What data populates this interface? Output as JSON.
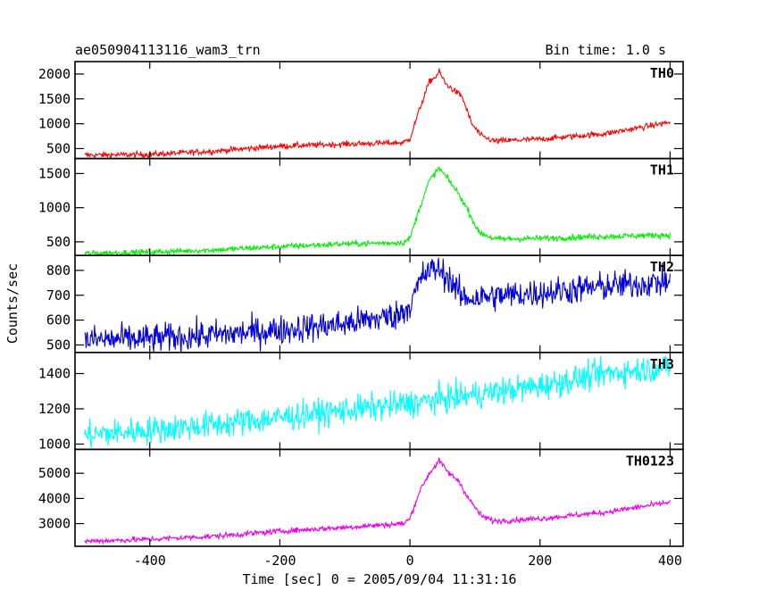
{
  "header": {
    "title": "ae050904113116_wam3_trn",
    "bin_time": "Bin time: 1.0 s"
  },
  "chart_data": {
    "type": "line",
    "xlabel": "Time [sec] 0 = 2005/09/04 11:31:16",
    "ylabel": "Counts/sec",
    "xlim": [
      -515,
      420
    ],
    "x_ticks": [
      -400,
      -200,
      0,
      200,
      400
    ],
    "x_range": [
      -500,
      400
    ],
    "panels": [
      {
        "name": "TH0",
        "color": "#ff0000",
        "ylim": [
          300,
          2250
        ],
        "y_ticks": [
          500,
          1000,
          1500,
          2000
        ],
        "noise": 30,
        "points": [
          [
            -500,
            370
          ],
          [
            -400,
            380
          ],
          [
            -300,
            450
          ],
          [
            -200,
            550
          ],
          [
            -100,
            590
          ],
          [
            -10,
            620
          ],
          [
            0,
            700
          ],
          [
            15,
            1300
          ],
          [
            30,
            1850
          ],
          [
            40,
            1950
          ],
          [
            45,
            2050
          ],
          [
            55,
            1800
          ],
          [
            70,
            1650
          ],
          [
            80,
            1550
          ],
          [
            95,
            1000
          ],
          [
            110,
            750
          ],
          [
            130,
            650
          ],
          [
            200,
            690
          ],
          [
            300,
            800
          ],
          [
            400,
            1030
          ]
        ]
      },
      {
        "name": "TH1",
        "color": "#00ee00",
        "ylim": [
          300,
          1720
        ],
        "y_ticks": [
          500,
          1000,
          1500
        ],
        "noise": 22,
        "points": [
          [
            -500,
            330
          ],
          [
            -400,
            350
          ],
          [
            -300,
            380
          ],
          [
            -200,
            430
          ],
          [
            -100,
            470
          ],
          [
            -10,
            490
          ],
          [
            0,
            550
          ],
          [
            15,
            1000
          ],
          [
            30,
            1400
          ],
          [
            45,
            1580
          ],
          [
            60,
            1400
          ],
          [
            75,
            1200
          ],
          [
            90,
            950
          ],
          [
            105,
            650
          ],
          [
            130,
            540
          ],
          [
            200,
            550
          ],
          [
            300,
            580
          ],
          [
            400,
            600
          ]
        ]
      },
      {
        "name": "TH2",
        "color": "#0000dd",
        "ylim": [
          470,
          860
        ],
        "y_ticks": [
          500,
          600,
          700,
          800
        ],
        "noise": 30,
        "points": [
          [
            -500,
            520
          ],
          [
            -400,
            525
          ],
          [
            -300,
            540
          ],
          [
            -200,
            560
          ],
          [
            -100,
            585
          ],
          [
            -20,
            620
          ],
          [
            0,
            660
          ],
          [
            20,
            780
          ],
          [
            40,
            810
          ],
          [
            60,
            770
          ],
          [
            80,
            690
          ],
          [
            100,
            690
          ],
          [
            150,
            700
          ],
          [
            200,
            710
          ],
          [
            300,
            735
          ],
          [
            400,
            755
          ]
        ]
      },
      {
        "name": "TH3",
        "color": "#00ffff",
        "ylim": [
          970,
          1520
        ],
        "y_ticks": [
          1000,
          1200,
          1400
        ],
        "noise": 40,
        "points": [
          [
            -500,
            1050
          ],
          [
            -400,
            1080
          ],
          [
            -300,
            1110
          ],
          [
            -200,
            1150
          ],
          [
            -100,
            1190
          ],
          [
            0,
            1230
          ],
          [
            100,
            1280
          ],
          [
            200,
            1330
          ],
          [
            300,
            1400
          ],
          [
            400,
            1440
          ]
        ]
      },
      {
        "name": "TH0123",
        "color": "#ee00ee",
        "ylim": [
          2100,
          5950
        ],
        "y_ticks": [
          3000,
          4000,
          5000
        ],
        "noise": 55,
        "points": [
          [
            -500,
            2300
          ],
          [
            -400,
            2380
          ],
          [
            -300,
            2500
          ],
          [
            -200,
            2700
          ],
          [
            -100,
            2850
          ],
          [
            -10,
            3000
          ],
          [
            0,
            3200
          ],
          [
            15,
            4300
          ],
          [
            30,
            5000
          ],
          [
            45,
            5500
          ],
          [
            60,
            5000
          ],
          [
            75,
            4700
          ],
          [
            90,
            4000
          ],
          [
            110,
            3300
          ],
          [
            130,
            3100
          ],
          [
            200,
            3200
          ],
          [
            300,
            3450
          ],
          [
            400,
            3850
          ]
        ]
      }
    ]
  }
}
